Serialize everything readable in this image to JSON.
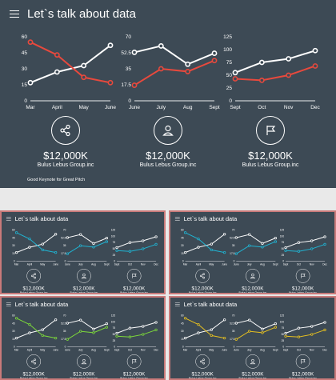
{
  "title": "Let`s talk about data",
  "footer": "Good Keynote for Great Pitch",
  "stats": [
    {
      "icon": "share-icon",
      "value": "$12,000K",
      "company": "Bulus Lebus Group.inc"
    },
    {
      "icon": "user-icon",
      "value": "$12,000K",
      "company": "Bulus Lebus Group.inc"
    },
    {
      "icon": "flag-icon",
      "value": "$12,000K",
      "company": "Bulus Lebus Group.inc"
    }
  ],
  "colors": {
    "background": "#3d4a55",
    "white_series": "#ffffff",
    "frame": "#c97a7a"
  },
  "slides": [
    {
      "accent": "#e8493d"
    },
    {
      "accent": "#1fb5d4"
    },
    {
      "accent": "#1fb5d4"
    },
    {
      "accent": "#7dd93a"
    },
    {
      "accent": "#e6c020"
    }
  ],
  "chart_data": [
    {
      "type": "line",
      "categories": [
        "Mar",
        "April",
        "May",
        "June"
      ],
      "yticks": [
        "0",
        "15",
        "30",
        "45",
        "60"
      ],
      "ylim": [
        0,
        60
      ],
      "series": [
        {
          "color": "white",
          "values": [
            17,
            27,
            33,
            52
          ]
        },
        {
          "color": "accent",
          "values": [
            55,
            43,
            22,
            17
          ]
        }
      ]
    },
    {
      "type": "line",
      "categories": [
        "June",
        "July",
        "Aug",
        "Sept"
      ],
      "yticks": [
        "0",
        "17.5",
        "35",
        "52.5",
        "70"
      ],
      "ylim": [
        0,
        70
      ],
      "series": [
        {
          "color": "white",
          "values": [
            53,
            60,
            40,
            52
          ]
        },
        {
          "color": "accent",
          "values": [
            17,
            35,
            32,
            44
          ]
        }
      ]
    },
    {
      "type": "line",
      "categories": [
        "Sept",
        "Oct",
        "Nov",
        "Dec"
      ],
      "yticks": [
        "0",
        "25",
        "50",
        "75",
        "100",
        "125"
      ],
      "ylim": [
        0,
        125
      ],
      "series": [
        {
          "color": "white",
          "values": [
            55,
            75,
            82,
            98
          ]
        },
        {
          "color": "accent",
          "values": [
            43,
            40,
            50,
            68
          ]
        }
      ]
    }
  ]
}
